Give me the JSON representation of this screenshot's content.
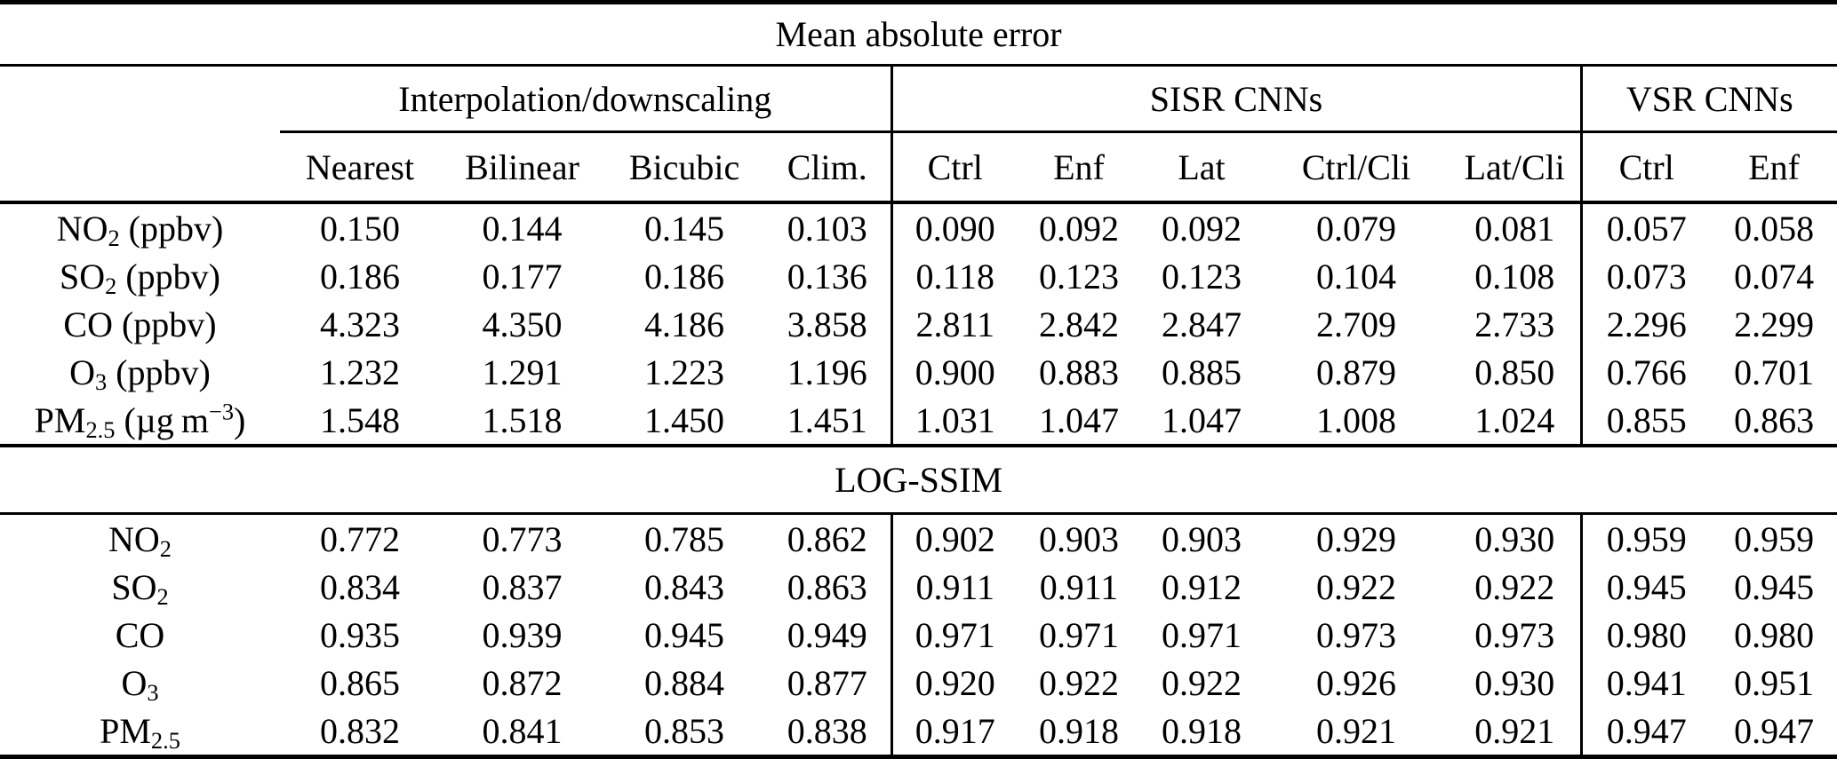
{
  "table": {
    "titles": {
      "mae": "Mean absolute error",
      "ssim": "LOG-SSIM"
    },
    "groups": {
      "interp": "Interpolation/downscaling",
      "sisr": "SISR CNNs",
      "vsr": "VSR CNNs"
    },
    "columns": [
      "Nearest",
      "Bilinear",
      "Bicubic",
      "Clim.",
      "Ctrl",
      "Enf",
      "Lat",
      "Ctrl/Cli",
      "Lat/Cli",
      "Ctrl",
      "Enf"
    ],
    "mae_rows": [
      {
        "label": [
          {
            "t": "NO"
          },
          {
            "t": "2",
            "sub": true
          },
          {
            "t": " (ppbv)"
          }
        ],
        "values": [
          "0.150",
          "0.144",
          "0.145",
          "0.103",
          "0.090",
          "0.092",
          "0.092",
          "0.079",
          "0.081",
          "0.057",
          "0.058"
        ],
        "bold": [
          9
        ]
      },
      {
        "label": [
          {
            "t": "SO"
          },
          {
            "t": "2",
            "sub": true
          },
          {
            "t": " (ppbv)"
          }
        ],
        "values": [
          "0.186",
          "0.177",
          "0.186",
          "0.136",
          "0.118",
          "0.123",
          "0.123",
          "0.104",
          "0.108",
          "0.073",
          "0.074"
        ],
        "bold": [
          9
        ]
      },
      {
        "label": [
          {
            "t": "CO (ppbv)"
          }
        ],
        "values": [
          "4.323",
          "4.350",
          "4.186",
          "3.858",
          "2.811",
          "2.842",
          "2.847",
          "2.709",
          "2.733",
          "2.296",
          "2.299"
        ],
        "bold": [
          9
        ]
      },
      {
        "label": [
          {
            "t": "O"
          },
          {
            "t": "3",
            "sub": true
          },
          {
            "t": " (ppbv)"
          }
        ],
        "values": [
          "1.232",
          "1.291",
          "1.223",
          "1.196",
          "0.900",
          "0.883",
          "0.885",
          "0.879",
          "0.850",
          "0.766",
          "0.701"
        ],
        "bold": [
          10
        ]
      },
      {
        "label": [
          {
            "t": "PM"
          },
          {
            "t": "2.5",
            "sub": true
          },
          {
            "t": " (µg m"
          },
          {
            "t": "−3",
            "sup": true
          },
          {
            "t": ")"
          }
        ],
        "values": [
          "1.548",
          "1.518",
          "1.450",
          "1.451",
          "1.031",
          "1.047",
          "1.047",
          "1.008",
          "1.024",
          "0.855",
          "0.863"
        ],
        "bold": [
          9
        ]
      }
    ],
    "ssim_rows": [
      {
        "label": [
          {
            "t": "NO"
          },
          {
            "t": "2",
            "sub": true
          }
        ],
        "values": [
          "0.772",
          "0.773",
          "0.785",
          "0.862",
          "0.902",
          "0.903",
          "0.903",
          "0.929",
          "0.930",
          "0.959",
          "0.959"
        ],
        "bold": [
          9,
          10
        ]
      },
      {
        "label": [
          {
            "t": "SO"
          },
          {
            "t": "2",
            "sub": true
          }
        ],
        "values": [
          "0.834",
          "0.837",
          "0.843",
          "0.863",
          "0.911",
          "0.911",
          "0.912",
          "0.922",
          "0.922",
          "0.945",
          "0.945"
        ],
        "bold": [
          9,
          10
        ]
      },
      {
        "label": [
          {
            "t": "CO"
          }
        ],
        "values": [
          "0.935",
          "0.939",
          "0.945",
          "0.949",
          "0.971",
          "0.971",
          "0.971",
          "0.973",
          "0.973",
          "0.980",
          "0.980"
        ],
        "bold": [
          9,
          10
        ]
      },
      {
        "label": [
          {
            "t": "O"
          },
          {
            "t": "3",
            "sub": true
          }
        ],
        "values": [
          "0.865",
          "0.872",
          "0.884",
          "0.877",
          "0.920",
          "0.922",
          "0.922",
          "0.926",
          "0.930",
          "0.941",
          "0.951"
        ],
        "bold": [
          10
        ]
      },
      {
        "label": [
          {
            "t": "PM"
          },
          {
            "t": "2.5",
            "sub": true
          }
        ],
        "values": [
          "0.832",
          "0.841",
          "0.853",
          "0.838",
          "0.917",
          "0.918",
          "0.918",
          "0.921",
          "0.921",
          "0.947",
          "0.947"
        ],
        "bold": [
          9,
          10
        ]
      }
    ]
  }
}
